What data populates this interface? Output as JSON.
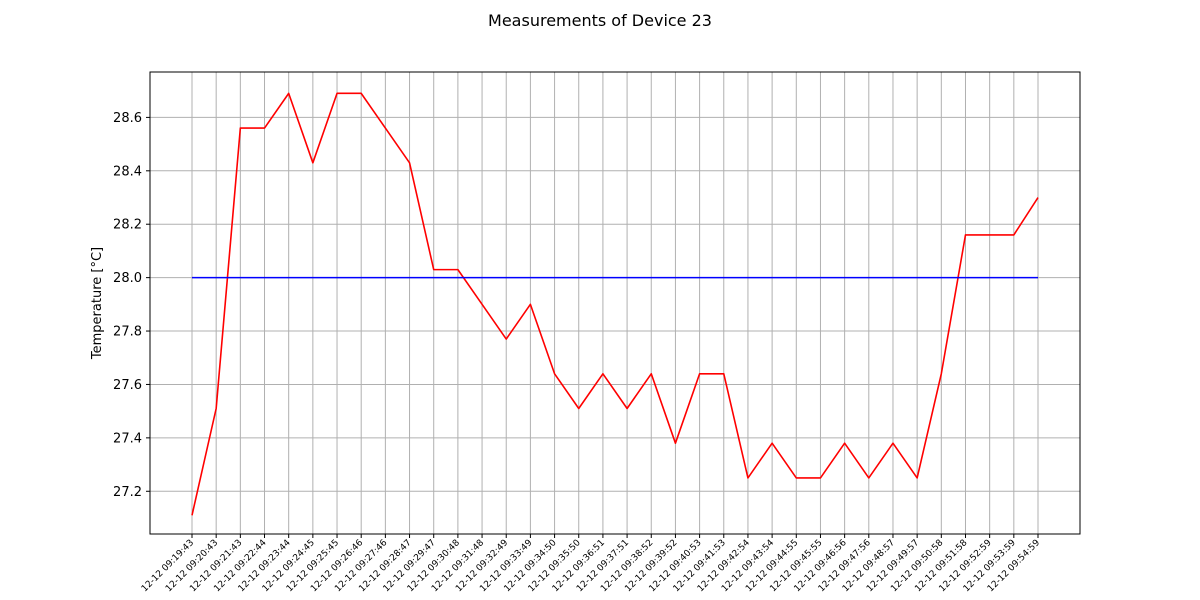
{
  "chart_data": {
    "type": "line",
    "title": "Measurements of Device 23",
    "xlabel": "",
    "ylabel": "Temperature [°C]",
    "ylim": [
      27.04,
      28.77
    ],
    "yticks": [
      27.2,
      27.4,
      27.6,
      27.8,
      28.0,
      28.2,
      28.4,
      28.6
    ],
    "ytick_labels": [
      "27.2",
      "27.4",
      "27.6",
      "27.8",
      "28.0",
      "28.2",
      "28.4",
      "28.6"
    ],
    "grid": true,
    "categories": [
      "12-12 09:19:43",
      "12-12 09:20:43",
      "12-12 09:21:43",
      "12-12 09:22:44",
      "12-12 09:23:44",
      "12-12 09:24:45",
      "12-12 09:25:45",
      "12-12 09:26:46",
      "12-12 09:27:46",
      "12-12 09:28:47",
      "12-12 09:29:47",
      "12-12 09:30:48",
      "12-12 09:31:48",
      "12-12 09:32:49",
      "12-12 09:33:49",
      "12-12 09:34:50",
      "12-12 09:35:50",
      "12-12 09:36:51",
      "12-12 09:37:51",
      "12-12 09:38:52",
      "12-12 09:39:52",
      "12-12 09:40:53",
      "12-12 09:41:53",
      "12-12 09:42:54",
      "12-12 09:43:54",
      "12-12 09:44:55",
      "12-12 09:45:55",
      "12-12 09:46:56",
      "12-12 09:47:56",
      "12-12 09:48:57",
      "12-12 09:49:57",
      "12-12 09:50:58",
      "12-12 09:51:58",
      "12-12 09:52:59",
      "12-12 09:53:59",
      "12-12 09:54:59"
    ],
    "series": [
      {
        "color": "#ff0000",
        "values": [
          27.11,
          27.51,
          28.56,
          28.56,
          28.69,
          28.43,
          28.69,
          28.69,
          28.56,
          28.43,
          28.03,
          28.03,
          27.9,
          27.77,
          27.9,
          27.64,
          27.51,
          27.64,
          27.51,
          27.64,
          27.38,
          27.64,
          27.64,
          27.25,
          27.38,
          27.25,
          27.25,
          27.38,
          27.25,
          27.38,
          27.25,
          27.64,
          28.16,
          28.16,
          28.16,
          28.3
        ]
      },
      {
        "color": "#0000ff",
        "values": [
          28.0,
          28.0,
          28.0,
          28.0,
          28.0,
          28.0,
          28.0,
          28.0,
          28.0,
          28.0,
          28.0,
          28.0,
          28.0,
          28.0,
          28.0,
          28.0,
          28.0,
          28.0,
          28.0,
          28.0,
          28.0,
          28.0,
          28.0,
          28.0,
          28.0,
          28.0,
          28.0,
          28.0,
          28.0,
          28.0,
          28.0,
          28.0,
          28.0,
          28.0,
          28.0,
          28.0
        ]
      }
    ]
  }
}
